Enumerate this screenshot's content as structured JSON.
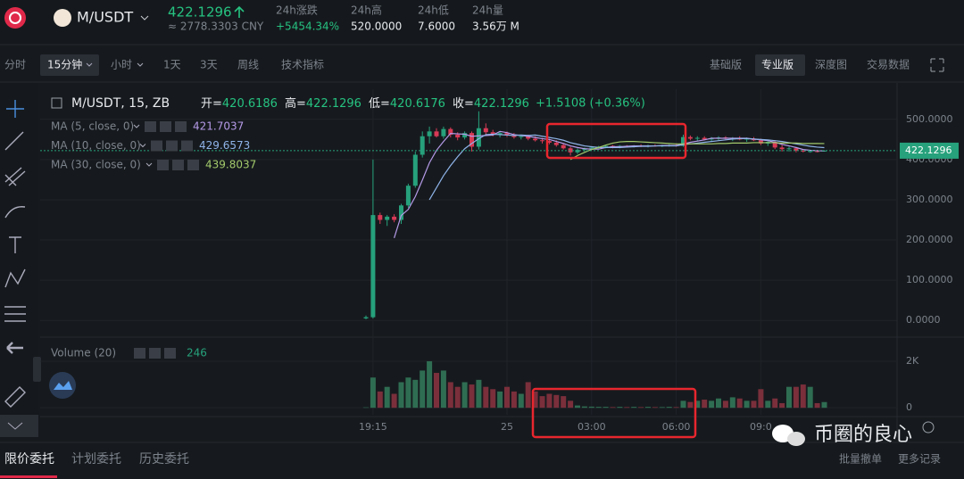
{
  "header": {
    "pair": "M/USDT",
    "price": "422.1296",
    "cny": "≈ 2778.3303 CNY",
    "stats": [
      {
        "label": "24h涨跌",
        "value": "+5454.34%"
      },
      {
        "label": "24h高",
        "value": "520.0000"
      },
      {
        "label": "24h低",
        "value": "7.6000"
      },
      {
        "label": "24h量",
        "value": "3.56万 M"
      }
    ]
  },
  "toolbar": {
    "left": [
      "分时",
      "15分钟",
      "小时",
      "1天",
      "3天",
      "周线",
      "技术指标"
    ],
    "right": [
      "基础版",
      "专业版",
      "深度图",
      "交易数据"
    ]
  },
  "chart_header": {
    "symbol": "M/USDT, 15, ZB",
    "ohlc": [
      {
        "label": "开=",
        "value": "420.6186"
      },
      {
        "label": "高=",
        "value": "422.1296"
      },
      {
        "label": "低=",
        "value": "420.6176"
      },
      {
        "label": "收=",
        "value": "422.1296"
      }
    ],
    "change": "+1.5108 (+0.36%)"
  },
  "chart_data": {
    "type": "candlestick",
    "up_color": "#26a17b",
    "down_color": "#d83a56",
    "candles": [
      [
        5,
        12,
        3,
        8
      ],
      [
        8,
        400,
        5,
        262
      ],
      [
        262,
        268,
        240,
        250
      ],
      [
        250,
        262,
        235,
        258
      ],
      [
        258,
        264,
        244,
        250
      ],
      [
        250,
        290,
        240,
        286
      ],
      [
        286,
        340,
        280,
        335
      ],
      [
        335,
        420,
        330,
        412
      ],
      [
        412,
        470,
        405,
        458
      ],
      [
        458,
        482,
        440,
        470
      ],
      [
        470,
        478,
        455,
        458
      ],
      [
        458,
        482,
        452,
        476
      ],
      [
        476,
        480,
        455,
        462
      ],
      [
        462,
        468,
        448,
        455
      ],
      [
        455,
        470,
        450,
        466
      ],
      [
        466,
        470,
        420,
        432
      ],
      [
        432,
        520,
        425,
        478
      ],
      [
        478,
        490,
        462,
        468
      ],
      [
        468,
        474,
        458,
        462
      ],
      [
        462,
        470,
        455,
        466
      ],
      [
        466,
        470,
        456,
        460
      ],
      [
        460,
        466,
        452,
        456
      ],
      [
        456,
        462,
        450,
        458
      ],
      [
        458,
        462,
        448,
        452
      ],
      [
        452,
        458,
        445,
        448
      ],
      [
        448,
        454,
        440,
        446
      ],
      [
        446,
        452,
        438,
        442
      ],
      [
        442,
        448,
        432,
        436
      ],
      [
        436,
        440,
        425,
        428
      ],
      [
        428,
        432,
        410,
        418
      ],
      [
        418,
        428,
        414,
        424
      ],
      [
        424,
        430,
        420,
        428
      ],
      [
        428,
        432,
        424,
        430
      ],
      [
        430,
        434,
        426,
        432
      ],
      [
        432,
        436,
        428,
        434
      ],
      [
        434,
        436,
        428,
        432
      ],
      [
        432,
        436,
        428,
        434
      ],
      [
        434,
        436,
        430,
        433
      ],
      [
        433,
        436,
        430,
        435
      ],
      [
        435,
        438,
        431,
        434
      ],
      [
        434,
        437,
        430,
        435
      ],
      [
        435,
        438,
        432,
        434
      ],
      [
        434,
        437,
        431,
        435
      ],
      [
        435,
        438,
        432,
        436
      ],
      [
        436,
        440,
        432,
        434
      ],
      [
        434,
        462,
        432,
        456
      ],
      [
        456,
        460,
        448,
        452
      ],
      [
        452,
        458,
        446,
        454
      ],
      [
        454,
        458,
        448,
        450
      ],
      [
        450,
        456,
        446,
        453
      ],
      [
        453,
        458,
        448,
        455
      ],
      [
        455,
        458,
        450,
        452
      ],
      [
        452,
        456,
        446,
        454
      ],
      [
        454,
        458,
        448,
        450
      ],
      [
        450,
        455,
        444,
        452
      ],
      [
        452,
        456,
        446,
        448
      ],
      [
        448,
        452,
        436,
        440
      ],
      [
        440,
        446,
        434,
        444
      ],
      [
        444,
        448,
        426,
        430
      ],
      [
        430,
        436,
        420,
        426
      ],
      [
        426,
        432,
        420,
        428
      ],
      [
        428,
        430,
        418,
        422
      ],
      [
        422,
        426,
        418,
        420
      ],
      [
        420,
        424,
        417,
        421
      ],
      [
        421,
        424,
        418,
        420
      ],
      [
        420.6186,
        422.1296,
        420.6176,
        422.1296
      ]
    ],
    "ma": [
      {
        "name": "MA (5, close, 0)",
        "color": "#b59ae8",
        "values": [
          null,
          null,
          null,
          null,
          205,
          261,
          276,
          308,
          349,
          392,
          423,
          445,
          465,
          464,
          463,
          458,
          459,
          460,
          461,
          470,
          467,
          462,
          460,
          458,
          455,
          452,
          450,
          445,
          440,
          434,
          430,
          427,
          426,
          426,
          430,
          432,
          432,
          433,
          434,
          434,
          434,
          434,
          435,
          435,
          435,
          439,
          443,
          446,
          449,
          453,
          453,
          453,
          453,
          453,
          453,
          451,
          449,
          447,
          443,
          438,
          434,
          430,
          425,
          423,
          422,
          421.7037
        ]
      },
      {
        "name": "MA (10, close, 0)",
        "color": "#8fb3e8",
        "values": [
          null,
          null,
          null,
          null,
          null,
          null,
          null,
          null,
          null,
          300,
          330,
          360,
          385,
          407,
          427,
          440,
          452,
          462,
          463,
          462,
          461,
          460,
          461,
          460,
          461,
          458,
          455,
          452,
          448,
          442,
          438,
          434,
          432,
          430,
          430,
          430,
          430,
          431,
          432,
          433,
          433,
          434,
          434,
          434,
          434,
          437,
          439,
          441,
          443,
          445,
          447,
          449,
          451,
          452,
          452,
          451,
          450,
          449,
          447,
          445,
          442,
          439,
          436,
          433,
          431,
          429.6573
        ]
      },
      {
        "name": "MA (30, close, 0)",
        "color": "#a3c96b",
        "values": [
          null,
          null,
          null,
          null,
          null,
          null,
          null,
          null,
          null,
          null,
          null,
          null,
          null,
          null,
          null,
          null,
          null,
          null,
          null,
          null,
          null,
          null,
          null,
          null,
          null,
          null,
          null,
          null,
          null,
          400,
          410,
          418,
          425,
          430,
          436,
          441,
          444,
          445,
          445,
          444,
          443,
          442,
          441,
          440,
          439,
          439,
          439,
          439,
          439,
          439,
          440,
          440,
          441,
          441,
          441,
          442,
          442,
          442,
          442,
          441,
          441,
          441,
          440,
          440,
          440,
          439.8037
        ]
      }
    ],
    "last_price": 422.1296,
    "ylim": [
      -35,
      575
    ],
    "yticks": [
      {
        "value": 0,
        "label": "0.0000"
      },
      {
        "value": 100,
        "label": "100.0000"
      },
      {
        "value": 200,
        "label": "200.0000"
      },
      {
        "value": 300,
        "label": "300.0000"
      },
      {
        "value": 400,
        "label": "400.0000"
      },
      {
        "value": 500,
        "label": "500.0000"
      }
    ],
    "xticks": [
      {
        "value": 1,
        "label": "19:15"
      },
      {
        "value": 20,
        "label": "25"
      },
      {
        "value": 32,
        "label": "03:00"
      },
      {
        "value": 44,
        "label": "06:00"
      },
      {
        "value": 56,
        "label": "09:0"
      }
    ],
    "volume": {
      "name": "Volume (20)",
      "up_color": "#2f6d52",
      "down_color": "#7a2f3b",
      "ylim": [
        -300,
        2880
      ],
      "yticks": [
        0,
        {
          "value": 2000,
          "label": "2K"
        }
      ],
      "values": [
        20,
        1300,
        700,
        900,
        600,
        1100,
        1300,
        1200,
        1600,
        2000,
        1500,
        1600,
        1100,
        900,
        1100,
        1000,
        1200,
        900,
        800,
        700,
        900,
        700,
        600,
        1100,
        700,
        500,
        600,
        550,
        500,
        300,
        100,
        60,
        50,
        40,
        40,
        30,
        40,
        30,
        40,
        30,
        40,
        30,
        30,
        40,
        30,
        300,
        250,
        300,
        350,
        300,
        400,
        300,
        450,
        400,
        300,
        300,
        800,
        300,
        400,
        200,
        900,
        900,
        1000,
        900,
        200,
        246
      ]
    }
  },
  "footer": {
    "tabs": [
      "限价委托",
      "计划委托",
      "历史委托"
    ],
    "actions": [
      "批量撤单",
      "更多记录"
    ]
  },
  "watermark": "币圈的良心"
}
